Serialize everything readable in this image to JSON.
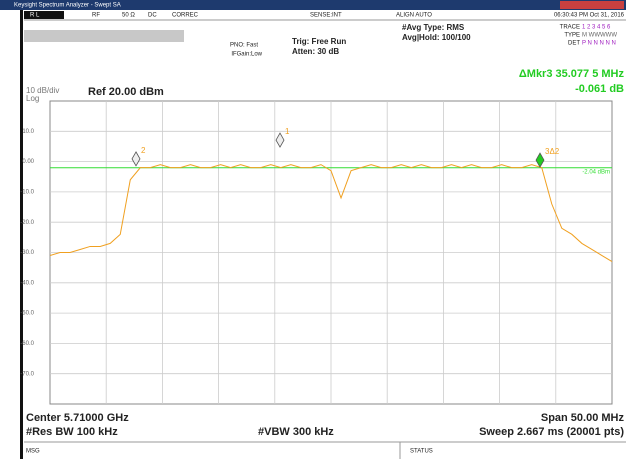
{
  "window_title": "Keysight Spectrum Analyzer - Swept SA",
  "status_bar": [
    "R L",
    "RF",
    "50 Ω",
    "DC",
    "CORREC",
    "SENSE:INT",
    "ALIGN AUTO",
    "06:30:43 PM Oct 31, 2016"
  ],
  "settings": {
    "pno": "PNO: Fast",
    "ifgain": "IFGain:Low",
    "trig": "Trig: Free Run",
    "atten": "Atten: 30 dB",
    "avg_type": "#Avg Type: RMS",
    "avg_hold": "Avg|Hold: 100/100"
  },
  "trace_panel": {
    "trace_label": "TRACE",
    "trace": "1 2 3 4 5 6",
    "type_label": "TYPE",
    "type": "M WWWWW",
    "det_label": "DET",
    "det": "P N N N N N"
  },
  "marker_readout": {
    "label": "ΔMkr3 35.077 5 MHz",
    "value": "-0.061 dB"
  },
  "chart_data": {
    "type": "line",
    "scale_label": "10 dB/div",
    "scale_type": "Log",
    "ref_level": "Ref 20.00 dBm",
    "ylim": [
      -80,
      20
    ],
    "yticks": [
      {
        "value": 10,
        "label": "10.0"
      },
      {
        "value": 0,
        "label": "0.00"
      },
      {
        "value": -10,
        "label": "-10.0"
      },
      {
        "value": -20,
        "label": "-20.0"
      },
      {
        "value": -30,
        "label": "-30.0"
      },
      {
        "value": -40,
        "label": "-40.0"
      },
      {
        "value": -50,
        "label": "-50.0"
      },
      {
        "value": -60,
        "label": "-60.0"
      },
      {
        "value": -70,
        "label": "-70.0"
      }
    ],
    "grid": true,
    "series": [
      {
        "color": "#f0a020",
        "values": [
          -31,
          -30,
          -30,
          -29,
          -28,
          -28,
          -27,
          -24,
          -6,
          -2,
          -2,
          -1,
          -2,
          -2,
          -1,
          -2,
          -2,
          -1,
          -2,
          -1,
          -2,
          -2,
          -1,
          -2,
          -1,
          -2,
          -2,
          -1,
          -3,
          -12,
          -3,
          -2,
          -1,
          -2,
          -2,
          -1,
          -2,
          -1,
          -2,
          -2,
          -1,
          -2,
          -1,
          -2,
          -2,
          -1,
          -2,
          -2,
          -1,
          -2,
          -14,
          -22,
          -24,
          -27,
          -29,
          -31,
          -33
        ]
      }
    ],
    "display_line": {
      "value": -2.04,
      "label": "-2.04 dBm",
      "color": "#33dd33"
    },
    "markers": [
      {
        "label": "1",
        "value": 7.1
      },
      {
        "label": "2",
        "value": 0.9
      },
      {
        "label": "3Δ2",
        "value": 0.5
      }
    ]
  },
  "footer": {
    "center": "Center 5.71000 GHz",
    "span": "Span 50.00 MHz",
    "res_bw": "#Res BW 100 kHz",
    "vbw": "#VBW 300 kHz",
    "sweep": "Sweep  2.667 ms (20001 pts)"
  },
  "message_bar": {
    "msg": "MSG",
    "status": "STATUS"
  }
}
